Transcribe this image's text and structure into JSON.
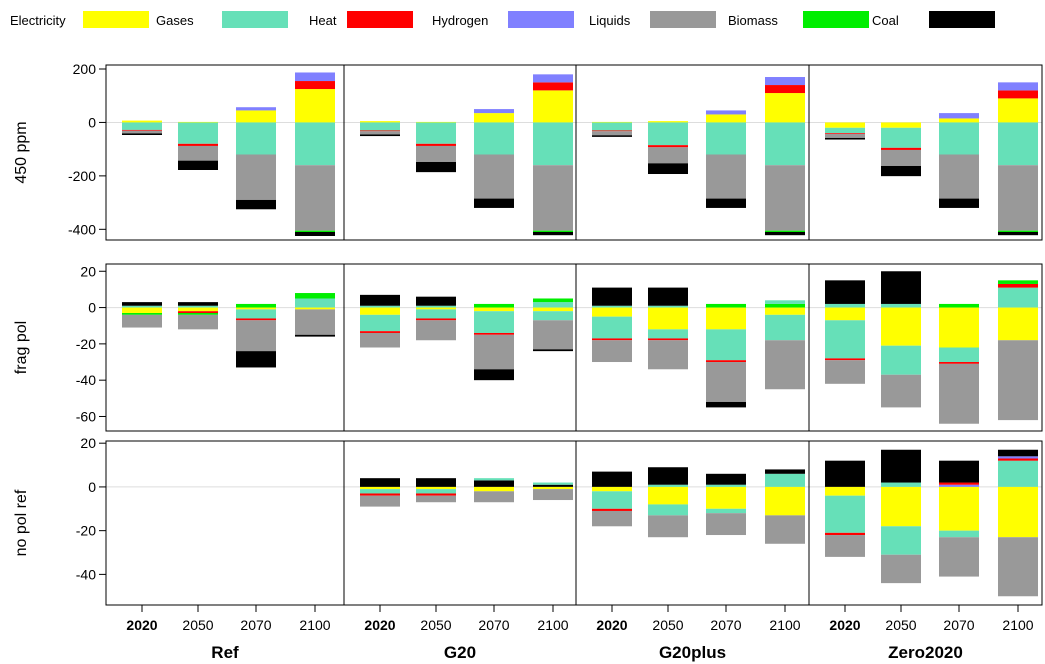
{
  "chart_data": {
    "type": "bar",
    "stacked": true,
    "grid": false,
    "legend_position": "top",
    "legend": [
      {
        "name": "Electricity",
        "color": "#ffff00"
      },
      {
        "name": "Gases",
        "color": "#66e0b8"
      },
      {
        "name": "Heat",
        "color": "#ff0000"
      },
      {
        "name": "Hydrogen",
        "color": "#8080ff"
      },
      {
        "name": "Liquids",
        "color": "#999999"
      },
      {
        "name": "Biomass",
        "color": "#00ee00"
      },
      {
        "name": "Coal",
        "color": "#000000"
      }
    ],
    "columns": [
      "Ref",
      "G20",
      "G20plus",
      "Zero2020"
    ],
    "categories": [
      "2020",
      "2050",
      "2070",
      "2100"
    ],
    "bold_categories": [
      "2020"
    ],
    "rows": [
      {
        "label": "450 ppm",
        "ylim": [
          -440,
          215
        ],
        "yticks": [
          200,
          0,
          -200,
          -400
        ],
        "panels": [
          [
            {
              "Electricity": 7,
              "Gases": -28,
              "Heat": -3,
              "Liquids": -10,
              "Coal": -6
            },
            {
              "Electricity": 2,
              "Gases": -80,
              "Heat": -8,
              "Liquids": -55,
              "Coal": -35
            },
            {
              "Electricity": 45,
              "Hydrogen": 12,
              "Gases": -120,
              "Liquids": -170,
              "Coal": -35
            },
            {
              "Electricity": 125,
              "Heat": 30,
              "Hydrogen": 32,
              "Gases": -160,
              "Liquids": -245,
              "Biomass": -5,
              "Coal": -15
            }
          ],
          [
            {
              "Electricity": 5,
              "Gases": -30,
              "Heat": -3,
              "Liquids": -12,
              "Coal": -6
            },
            {
              "Electricity": 2,
              "Gases": -80,
              "Heat": -8,
              "Liquids": -60,
              "Coal": -38
            },
            {
              "Electricity": 35,
              "Hydrogen": 15,
              "Gases": -120,
              "Liquids": -165,
              "Coal": -35
            },
            {
              "Electricity": 120,
              "Heat": 30,
              "Hydrogen": 30,
              "Gases": -160,
              "Liquids": -245,
              "Biomass": -5,
              "Coal": -12
            }
          ],
          [
            {
              "Electricity": 2,
              "Gases": -30,
              "Heat": -3,
              "Liquids": -15,
              "Coal": -6
            },
            {
              "Electricity": 5,
              "Gases": -85,
              "Heat": -8,
              "Liquids": -60,
              "Coal": -40
            },
            {
              "Electricity": 30,
              "Hydrogen": 15,
              "Gases": -120,
              "Liquids": -165,
              "Coal": -35
            },
            {
              "Electricity": 110,
              "Heat": 30,
              "Hydrogen": 30,
              "Gases": -160,
              "Liquids": -245,
              "Biomass": -5,
              "Coal": -12
            }
          ],
          [
            {
              "Electricity": -20,
              "Gases": -20,
              "Heat": -3,
              "Liquids": -15,
              "Coal": -6
            },
            {
              "Electricity": -20,
              "Gases": -75,
              "Heat": -8,
              "Liquids": -60,
              "Coal": -38
            },
            {
              "Electricity": 15,
              "Hydrogen": 20,
              "Gases": -120,
              "Liquids": -165,
              "Coal": -35
            },
            {
              "Electricity": 90,
              "Heat": 30,
              "Hydrogen": 30,
              "Gases": -160,
              "Liquids": -245,
              "Biomass": -5,
              "Coal": -12
            }
          ]
        ]
      },
      {
        "label": "frag pol",
        "ylim": [
          -68,
          24
        ],
        "yticks": [
          20,
          0,
          -20,
          -40,
          -60
        ],
        "panels": [
          [
            {
              "Gases": 1,
              "Coal": 2,
              "Electricity": -3,
              "Biomass": -1,
              "Liquids": -7
            },
            {
              "Gases": 1,
              "Coal": 2,
              "Electricity": -2,
              "Heat": -1,
              "Biomass": -1,
              "Liquids": -8
            },
            {
              "Biomass": 2,
              "Electricity": -1,
              "Gases": -5,
              "Heat": -1,
              "Liquids": -17,
              "Coal": -9
            },
            {
              "Gases": 5,
              "Biomass": 3,
              "Electricity": -1,
              "Liquids": -14,
              "Coal": -1
            }
          ],
          [
            {
              "Gases": 1,
              "Coal": 6,
              "Electricity": -4,
              "Gases2": -9,
              "Heat": -1,
              "Liquids": -8
            },
            {
              "Gases": 1,
              "Coal": 5,
              "Electricity": -1,
              "Gases2": -5,
              "Heat": -1,
              "Liquids": -11
            },
            {
              "Biomass": 2,
              "Electricity": -2,
              "Gases": -12,
              "Heat": -1,
              "Liquids": -19,
              "Coal": -6
            },
            {
              "Gases": 3,
              "Biomass": 2,
              "Electricity": -2,
              "Gases2": -5,
              "Liquids": -16,
              "Coal": -1
            }
          ],
          [
            {
              "Gases": 1,
              "Coal": 10,
              "Electricity": -5,
              "Gases2": -12,
              "Heat": -1,
              "Liquids": -12
            },
            {
              "Gases": 1,
              "Coal": 10,
              "Electricity": -12,
              "Gases2": -5,
              "Heat": -1,
              "Liquids": -16
            },
            {
              "Biomass": 2,
              "Electricity": -12,
              "Gases": -17,
              "Heat": -1,
              "Liquids": -22,
              "Coal": -3
            },
            {
              "Biomass": 2,
              "Gases": 2,
              "Electricity": -4,
              "Gases2": -14,
              "Liquids": -27
            }
          ],
          [
            {
              "Gases": 2,
              "Coal": 13,
              "Electricity": -7,
              "Gases2": -21,
              "Heat": -1,
              "Liquids": -13
            },
            {
              "Gases": 2,
              "Coal": 18,
              "Electricity": -21,
              "Gases2": -16,
              "Liquids": -18
            },
            {
              "Biomass": 2,
              "Electricity": -22,
              "Gases": -8,
              "Heat": -1,
              "Liquids": -33
            },
            {
              "Gases": 11,
              "Heat": 2,
              "Biomass": 2,
              "Electricity": -18,
              "Liquids": -44
            }
          ]
        ]
      },
      {
        "label": "no pol ref",
        "ylim": [
          -54,
          21
        ],
        "yticks": [
          20,
          0,
          -20,
          -40
        ],
        "panels": [
          [
            {},
            {},
            {},
            {}
          ],
          [
            {
              "Coal": 4,
              "Electricity": -1,
              "Gases": -2,
              "Heat": -1,
              "Liquids": -5
            },
            {
              "Coal": 4,
              "Electricity": -1,
              "Gases": -2,
              "Heat": -1,
              "Liquids": -3
            },
            {
              "Coal": 3,
              "Gases": 1,
              "Electricity": -2,
              "Liquids": -5
            },
            {
              "Coal": 1,
              "Gases": 1,
              "Electricity": -1,
              "Liquids": -5
            }
          ],
          [
            {
              "Coal": 7,
              "Electricity": -2,
              "Gases": -8,
              "Heat": -1,
              "Liquids": -7
            },
            {
              "Gases": 1,
              "Coal": 8,
              "Electricity": -8,
              "Gases2": -5,
              "Liquids": -10
            },
            {
              "Gases": 1,
              "Coal": 5,
              "Electricity": -10,
              "Gases2": -2,
              "Liquids": -10
            },
            {
              "Gases": 6,
              "Coal": 2,
              "Electricity": -13,
              "Liquids": -13
            }
          ],
          [
            {
              "Coal": 12,
              "Electricity": -4,
              "Gases": -17,
              "Heat": -1,
              "Liquids": -10
            },
            {
              "Gases": 2,
              "Coal": 15,
              "Electricity": -18,
              "Gases2": -13,
              "Liquids": -13
            },
            {
              "Hydrogen": 1,
              "Heat": 1,
              "Coal": 10,
              "Electricity": -20,
              "Gases": -3,
              "Liquids": -18
            },
            {
              "Gases": 12,
              "Heat": 1,
              "Hydrogen": 1,
              "Coal": 3,
              "Electricity": -23,
              "Liquids": -27
            }
          ]
        ]
      }
    ]
  }
}
